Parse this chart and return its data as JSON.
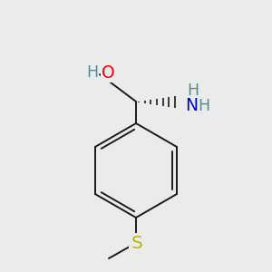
{
  "background_color": "#ebebeb",
  "atom_colors": {
    "O": "#ff0000",
    "N": "#0000cd",
    "S": "#b8b800",
    "C": "#000000",
    "H": "#4a9090"
  },
  "bond_color": "#1a1a1a",
  "bond_width": 1.4,
  "figsize": [
    3.0,
    3.0
  ],
  "dpi": 100
}
